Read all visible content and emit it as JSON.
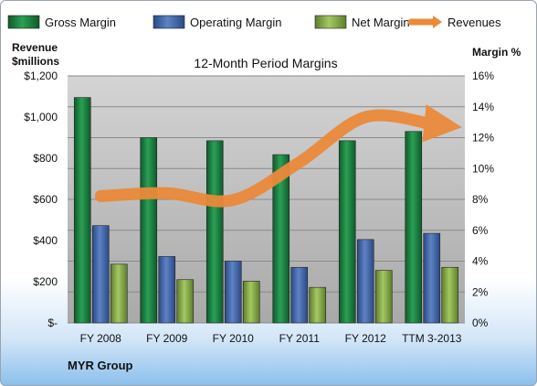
{
  "chart_data": {
    "type": "bar",
    "title": "12-Month Period Margins",
    "categories": [
      "FY 2008",
      "FY 2009",
      "FY 2010",
      "FY 2011",
      "FY 2012",
      "TTM 3-2013"
    ],
    "series": [
      {
        "name": "Gross Margin",
        "axis": "right",
        "values": [
          14.6,
          12.0,
          11.8,
          10.9,
          11.8,
          12.4
        ],
        "color": "#1f8a45"
      },
      {
        "name": "Operating Margin",
        "axis": "right",
        "values": [
          6.3,
          4.3,
          4.0,
          3.6,
          5.4,
          5.8
        ],
        "color": "#4a6fb0"
      },
      {
        "name": "Net Margin",
        "axis": "right",
        "values": [
          3.8,
          2.8,
          2.7,
          2.3,
          3.4,
          3.6
        ],
        "color": "#8db54a"
      },
      {
        "name": "Revenues",
        "axis": "left",
        "type": "line",
        "values": [
          616,
          630,
          597,
          780,
          1000,
          966
        ],
        "color": "#ea8a3a"
      }
    ],
    "ylabel_left": "Revenue $millions",
    "ylabel_right": "Margin %",
    "ylim_left": [
      0,
      1200
    ],
    "ylim_right": [
      0,
      16
    ],
    "yticks_left": [
      "$-",
      "$200",
      "$400",
      "$600",
      "$800",
      "$1,000",
      "$1,200"
    ],
    "yticks_right": [
      "0%",
      "2%",
      "4%",
      "6%",
      "8%",
      "10%",
      "12%",
      "14%",
      "16%"
    ],
    "legend": "top",
    "grid": true
  },
  "company": "MYR Group"
}
